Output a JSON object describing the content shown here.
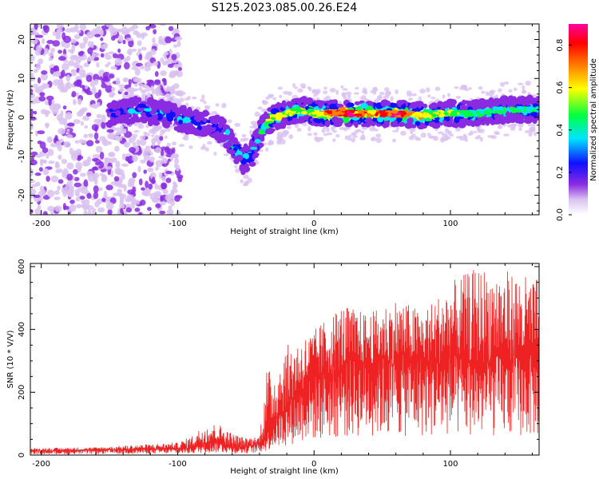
{
  "chart_data": [
    {
      "type": "heatmap",
      "title": "S125.2023.085.00.26.E24",
      "xlabel": "Height of straight line (km)",
      "ylabel": "Frequency (Hz)",
      "xlim": [
        -208,
        165
      ],
      "ylim": [
        -25,
        24
      ],
      "xticks": [
        -200,
        -100,
        0,
        100
      ],
      "yticks": [
        -20,
        -10,
        0,
        10,
        20
      ],
      "colorbar": {
        "label": "Normalized spectral amplitude",
        "range": [
          0,
          0.9
        ],
        "ticks": [
          0.0,
          0.2,
          0.4,
          0.6,
          0.8
        ],
        "colors": [
          "#ffffff",
          "#d9c2f0",
          "#8a2be2",
          "#1010ff",
          "#00e5ff",
          "#00ff40",
          "#ffff00",
          "#ff8000",
          "#ff0000",
          "#ff00a0"
        ]
      },
      "ridge": {
        "x": [
          -150,
          -130,
          -110,
          -90,
          -75,
          -65,
          -58,
          -52,
          -45,
          -38,
          -30,
          -20,
          -10,
          0,
          20,
          40,
          60,
          80,
          100,
          120,
          140,
          165
        ],
        "y": [
          1,
          2,
          1,
          -1,
          -2,
          -4,
          -8,
          -11,
          -9,
          -3,
          0,
          1,
          2,
          1,
          1,
          1,
          1,
          0.5,
          1,
          1,
          2,
          2
        ],
        "amplitude": [
          0.3,
          0.4,
          0.4,
          0.4,
          0.4,
          0.5,
          0.5,
          0.5,
          0.5,
          0.5,
          0.7,
          0.6,
          0.6,
          0.7,
          0.9,
          0.8,
          0.9,
          0.7,
          0.6,
          0.5,
          0.5,
          0.5
        ]
      }
    },
    {
      "type": "line",
      "xlabel": "Height of straight line (km)",
      "ylabel": "SNR (10 * V/V)",
      "xlim": [
        -208,
        165
      ],
      "ylim": [
        0,
        610
      ],
      "xticks": [
        -200,
        -100,
        0,
        100
      ],
      "yticks": [
        0,
        200,
        400,
        600
      ],
      "color": "#ee2222",
      "envelope": {
        "x": [
          -208,
          -160,
          -120,
          -100,
          -90,
          -80,
          -70,
          -60,
          -50,
          -40,
          -35,
          -30,
          -20,
          -10,
          0,
          20,
          40,
          60,
          80,
          100,
          120,
          140,
          165
        ],
        "baseline": [
          12,
          15,
          18,
          20,
          22,
          35,
          40,
          25,
          25,
          35,
          60,
          100,
          150,
          200,
          230,
          270,
          290,
          290,
          290,
          290,
          290,
          290,
          290
        ],
        "peak": [
          22,
          25,
          35,
          40,
          60,
          100,
          100,
          70,
          55,
          60,
          280,
          260,
          350,
          370,
          400,
          480,
          450,
          500,
          460,
          550,
          600,
          590,
          560
        ]
      }
    }
  ]
}
